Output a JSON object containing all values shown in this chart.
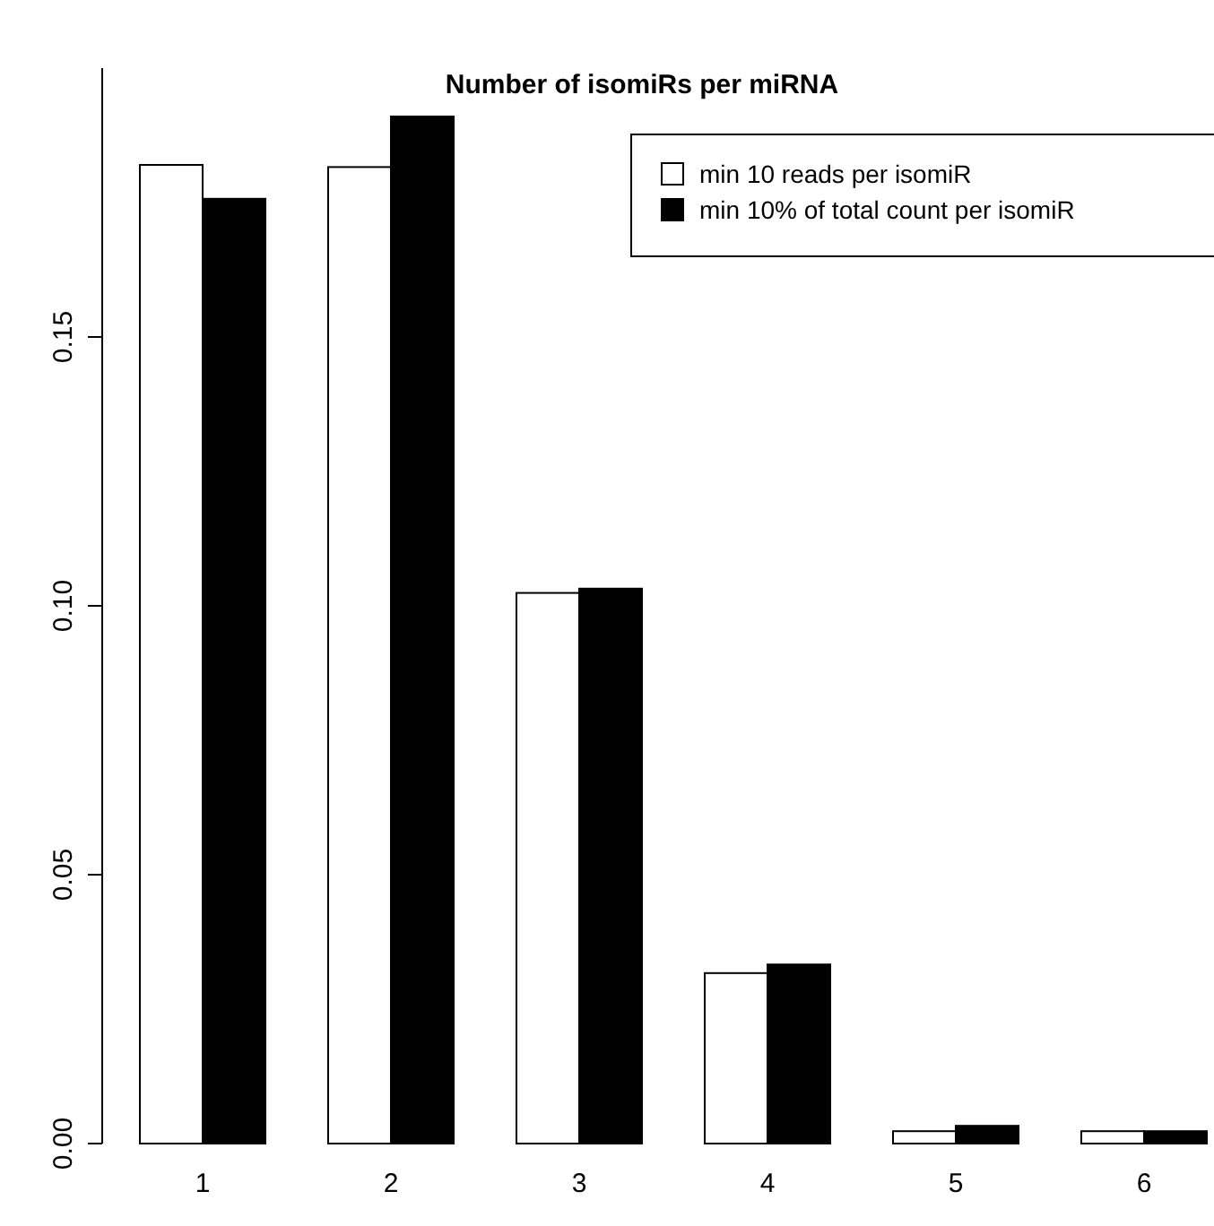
{
  "chart_data": {
    "type": "bar",
    "title": "Number of isomiRs per miRNA",
    "categories": [
      "1",
      "2",
      "3",
      "4",
      "5",
      "6"
    ],
    "series": [
      {
        "name": "min 10 reads per isomiR",
        "color": "#ffffff",
        "values": [
          0.182,
          0.1816,
          0.1024,
          0.0317,
          0.0023,
          0.0023
        ]
      },
      {
        "name": "min 10% of total count per isomiR",
        "color": "#000000",
        "values": [
          0.1757,
          0.191,
          0.1032,
          0.0333,
          0.0033,
          0.0023
        ]
      }
    ],
    "ylim": [
      0,
      0.2
    ],
    "yticks": [
      {
        "value": 0,
        "label": "0.00"
      },
      {
        "value": 0.05,
        "label": "0.05"
      },
      {
        "value": 0.1,
        "label": "0.10"
      },
      {
        "value": 0.15,
        "label": "0.15"
      }
    ],
    "legend": "top right",
    "grid": false
  }
}
